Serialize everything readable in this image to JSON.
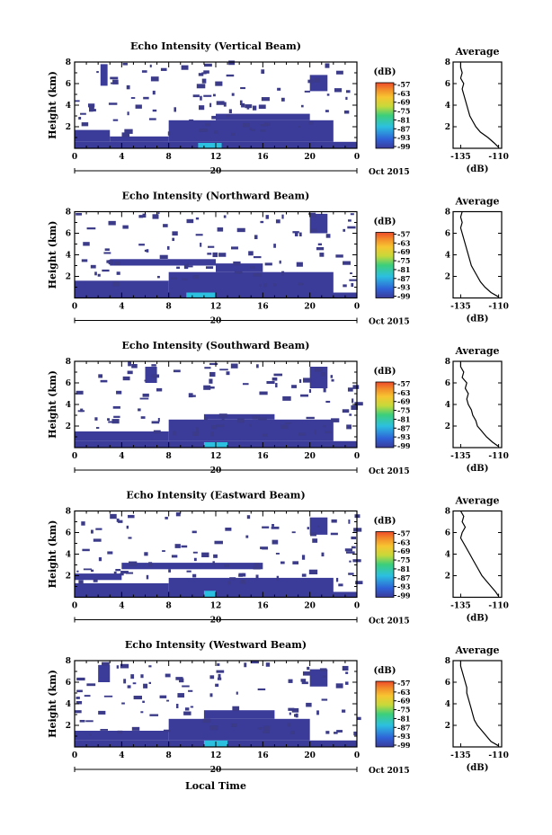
{
  "chart_data": [
    {
      "type": "heatmap",
      "title": "Echo Intensity (Vertical Beam)",
      "ylabel": "Height (km)",
      "xlim": [
        0,
        24
      ],
      "ylim": [
        0,
        8
      ],
      "x_ticks": [
        "0",
        "4",
        "8",
        "12",
        "16",
        "20",
        "0"
      ],
      "y_ticks": [
        "2",
        "4",
        "6",
        "8"
      ],
      "date_label": "20",
      "month_label": "Oct 2015",
      "colorbar": {
        "label": "(dB)",
        "ticks": [
          "-57",
          "-63",
          "-69",
          "-75",
          "-81",
          "-87",
          "-93",
          "-99"
        ]
      },
      "regions": [
        {
          "x0": 0,
          "x1": 24,
          "y0": 0,
          "y1": 0.6,
          "level": 0.06
        },
        {
          "x0": 0,
          "x1": 3,
          "y0": 0.6,
          "y1": 1.7,
          "level": 0.05
        },
        {
          "x0": 3,
          "x1": 8,
          "y0": 0.6,
          "y1": 1.1,
          "level": 0.05
        },
        {
          "x0": 8,
          "x1": 22,
          "y0": 0.6,
          "y1": 2.6,
          "level": 0.05
        },
        {
          "x0": 12,
          "x1": 20,
          "y0": 2.6,
          "y1": 3.2,
          "level": 0.04
        },
        {
          "x0": 10.5,
          "x1": 12.5,
          "y0": 0,
          "y1": 0.5,
          "level": 0.22
        },
        {
          "x0": 20,
          "x1": 21.5,
          "y0": 5.3,
          "y1": 6.8,
          "level": 0.04
        },
        {
          "x0": 2.2,
          "x1": 2.8,
          "y0": 5.8,
          "y1": 7.8,
          "level": 0.03
        }
      ],
      "average_profile": {
        "title": "Average",
        "xlabel": "(dB)",
        "x_ticks": [
          "-135",
          "-110"
        ],
        "xlim": [
          -140,
          -108
        ],
        "ylim": [
          0,
          8
        ],
        "y_ticks": [
          "2",
          "4",
          "6",
          "8"
        ],
        "x": [
          -110,
          -113,
          -117,
          -122,
          -125,
          -127,
          -129,
          -130,
          -131,
          -132,
          -133,
          -134,
          -133,
          -135,
          -134,
          -135,
          -135
        ],
        "y": [
          0.1,
          0.5,
          1.0,
          1.5,
          2.0,
          2.5,
          3.0,
          3.5,
          4.0,
          4.5,
          5.0,
          5.5,
          6.0,
          6.5,
          7.0,
          7.5,
          8.0
        ]
      }
    },
    {
      "type": "heatmap",
      "title": "Echo Intensity (Northward Beam)",
      "ylabel": "Height (km)",
      "xlim": [
        0,
        24
      ],
      "ylim": [
        0,
        8
      ],
      "x_ticks": [
        "0",
        "4",
        "8",
        "12",
        "16",
        "20",
        "0"
      ],
      "y_ticks": [
        "2",
        "4",
        "6",
        "8"
      ],
      "date_label": "20",
      "month_label": "Oct 2015",
      "colorbar": {
        "label": "(dB)",
        "ticks": [
          "-57",
          "-63",
          "-69",
          "-75",
          "-81",
          "-87",
          "-93",
          "-99"
        ]
      },
      "regions": [
        {
          "x0": 0,
          "x1": 24,
          "y0": 0,
          "y1": 0.5,
          "level": 0.06
        },
        {
          "x0": 0,
          "x1": 8,
          "y0": 0.5,
          "y1": 1.6,
          "level": 0.05
        },
        {
          "x0": 8,
          "x1": 22,
          "y0": 0.5,
          "y1": 2.4,
          "level": 0.05
        },
        {
          "x0": 12,
          "x1": 16,
          "y0": 2.4,
          "y1": 3.2,
          "level": 0.04
        },
        {
          "x0": 9.5,
          "x1": 12,
          "y0": 0,
          "y1": 0.5,
          "level": 0.22
        },
        {
          "x0": 20,
          "x1": 21.5,
          "y0": 6.0,
          "y1": 7.8,
          "level": 0.04
        },
        {
          "x0": 3,
          "x1": 12,
          "y0": 3.0,
          "y1": 3.6,
          "level": 0.03
        }
      ],
      "average_profile": {
        "title": "Average",
        "xlabel": "(dB)",
        "x_ticks": [
          "-135",
          "-110"
        ],
        "xlim": [
          -140,
          -108
        ],
        "ylim": [
          0,
          8
        ],
        "y_ticks": [
          "2",
          "4",
          "6",
          "8"
        ],
        "x": [
          -110,
          -115,
          -119,
          -122,
          -124,
          -126,
          -128,
          -129,
          -130,
          -131,
          -132,
          -133,
          -134,
          -135,
          -134,
          -135,
          -134
        ],
        "y": [
          0.1,
          0.5,
          1.0,
          1.5,
          2.0,
          2.5,
          3.0,
          3.5,
          4.0,
          4.5,
          5.0,
          5.5,
          6.0,
          6.5,
          7.0,
          7.5,
          8.0
        ]
      }
    },
    {
      "type": "heatmap",
      "title": "Echo Intensity (Southward Beam)",
      "ylabel": "Height (km)",
      "xlim": [
        0,
        24
      ],
      "ylim": [
        0,
        8
      ],
      "x_ticks": [
        "0",
        "4",
        "8",
        "12",
        "16",
        "20",
        "0"
      ],
      "y_ticks": [
        "2",
        "4",
        "6",
        "8"
      ],
      "date_label": "20",
      "month_label": "Oct 2015",
      "colorbar": {
        "label": "(dB)",
        "ticks": [
          "-57",
          "-63",
          "-69",
          "-75",
          "-81",
          "-87",
          "-93",
          "-99"
        ]
      },
      "regions": [
        {
          "x0": 0,
          "x1": 24,
          "y0": 0,
          "y1": 0.6,
          "level": 0.06
        },
        {
          "x0": 0,
          "x1": 8,
          "y0": 0.6,
          "y1": 1.5,
          "level": 0.05
        },
        {
          "x0": 8,
          "x1": 22,
          "y0": 0.6,
          "y1": 2.6,
          "level": 0.05
        },
        {
          "x0": 11,
          "x1": 17,
          "y0": 2.6,
          "y1": 3.1,
          "level": 0.04
        },
        {
          "x0": 11,
          "x1": 13,
          "y0": 0,
          "y1": 0.5,
          "level": 0.22
        },
        {
          "x0": 20,
          "x1": 21.5,
          "y0": 5.5,
          "y1": 7.5,
          "level": 0.04
        },
        {
          "x0": 6,
          "x1": 7,
          "y0": 6.0,
          "y1": 7.5,
          "level": 0.03
        }
      ],
      "average_profile": {
        "title": "Average",
        "xlabel": "(dB)",
        "x_ticks": [
          "-135",
          "-110"
        ],
        "xlim": [
          -140,
          -108
        ],
        "ylim": [
          0,
          8
        ],
        "y_ticks": [
          "2",
          "4",
          "6",
          "8"
        ],
        "x": [
          -110,
          -114,
          -118,
          -121,
          -124,
          -125,
          -127,
          -128,
          -130,
          -131,
          -130,
          -132,
          -131,
          -134,
          -133,
          -135,
          -135
        ],
        "y": [
          0.1,
          0.5,
          1.0,
          1.5,
          2.0,
          2.5,
          3.0,
          3.5,
          4.0,
          4.5,
          5.0,
          5.5,
          6.0,
          6.5,
          7.0,
          7.5,
          8.0
        ]
      }
    },
    {
      "type": "heatmap",
      "title": "Echo Intensity (Eastward Beam)",
      "ylabel": "Height (km)",
      "xlim": [
        0,
        24
      ],
      "ylim": [
        0,
        8
      ],
      "x_ticks": [
        "0",
        "4",
        "8",
        "12",
        "16",
        "20",
        "0"
      ],
      "y_ticks": [
        "2",
        "4",
        "6",
        "8"
      ],
      "date_label": "20",
      "month_label": "Oct 2015",
      "colorbar": {
        "label": "(dB)",
        "ticks": [
          "-57",
          "-63",
          "-69",
          "-75",
          "-81",
          "-87",
          "-93",
          "-99"
        ]
      },
      "regions": [
        {
          "x0": 0,
          "x1": 24,
          "y0": 0,
          "y1": 0.5,
          "level": 0.06
        },
        {
          "x0": 0,
          "x1": 8,
          "y0": 0.5,
          "y1": 1.3,
          "level": 0.05
        },
        {
          "x0": 8,
          "x1": 22,
          "y0": 0.5,
          "y1": 1.8,
          "level": 0.05
        },
        {
          "x0": 4,
          "x1": 16,
          "y0": 2.6,
          "y1": 3.2,
          "level": 0.04
        },
        {
          "x0": 11,
          "x1": 12,
          "y0": 0,
          "y1": 0.6,
          "level": 0.22
        },
        {
          "x0": 20,
          "x1": 21.5,
          "y0": 5.8,
          "y1": 7.4,
          "level": 0.04
        },
        {
          "x0": 0,
          "x1": 4,
          "y0": 1.6,
          "y1": 2.2,
          "level": 0.04
        }
      ],
      "average_profile": {
        "title": "Average",
        "xlabel": "(dB)",
        "x_ticks": [
          "-135",
          "-110"
        ],
        "xlim": [
          -140,
          -108
        ],
        "ylim": [
          0,
          8
        ],
        "y_ticks": [
          "2",
          "4",
          "6",
          "8"
        ],
        "x": [
          -110,
          -112,
          -115,
          -118,
          -121,
          -123,
          -125,
          -127,
          -129,
          -131,
          -133,
          -135,
          -134,
          -132,
          -134,
          -133,
          -135
        ],
        "y": [
          0.1,
          0.5,
          1.0,
          1.5,
          2.0,
          2.5,
          3.0,
          3.5,
          4.0,
          4.5,
          5.0,
          5.5,
          6.0,
          6.5,
          7.0,
          7.5,
          8.0
        ]
      }
    },
    {
      "type": "heatmap",
      "title": "Echo Intensity (Westward Beam)",
      "ylabel": "Height (km)",
      "xlim": [
        0,
        24
      ],
      "ylim": [
        0,
        8
      ],
      "x_ticks": [
        "0",
        "4",
        "8",
        "12",
        "16",
        "20",
        "0"
      ],
      "y_ticks": [
        "2",
        "4",
        "6",
        "8"
      ],
      "date_label": "20",
      "month_label": "Oct 2015",
      "xlabel": "Local Time",
      "colorbar": {
        "label": "(dB)",
        "ticks": [
          "-57",
          "-63",
          "-69",
          "-75",
          "-81",
          "-87",
          "-93",
          "-99"
        ]
      },
      "regions": [
        {
          "x0": 0,
          "x1": 24,
          "y0": 0,
          "y1": 0.6,
          "level": 0.06
        },
        {
          "x0": 0,
          "x1": 8,
          "y0": 0.6,
          "y1": 1.5,
          "level": 0.05
        },
        {
          "x0": 8,
          "x1": 20,
          "y0": 0.6,
          "y1": 2.6,
          "level": 0.05
        },
        {
          "x0": 11,
          "x1": 17,
          "y0": 2.6,
          "y1": 3.4,
          "level": 0.04
        },
        {
          "x0": 11,
          "x1": 13,
          "y0": 0,
          "y1": 0.6,
          "level": 0.22
        },
        {
          "x0": 20,
          "x1": 21.5,
          "y0": 5.6,
          "y1": 7.2,
          "level": 0.04
        },
        {
          "x0": 2,
          "x1": 3,
          "y0": 6.0,
          "y1": 7.6,
          "level": 0.03
        }
      ],
      "average_profile": {
        "title": "Average",
        "xlabel": "(dB)",
        "x_ticks": [
          "-135",
          "-110"
        ],
        "xlim": [
          -140,
          -108
        ],
        "ylim": [
          0,
          8
        ],
        "y_ticks": [
          "2",
          "4",
          "6",
          "8"
        ],
        "x": [
          -110,
          -115,
          -118,
          -121,
          -124,
          -126,
          -127,
          -128,
          -129,
          -130,
          -131,
          -131,
          -132,
          -133,
          -134,
          -135,
          -135
        ],
        "y": [
          0.1,
          0.5,
          1.0,
          1.5,
          2.0,
          2.5,
          3.0,
          3.5,
          4.0,
          4.5,
          5.0,
          5.5,
          6.0,
          6.5,
          7.0,
          7.5,
          8.0
        ]
      }
    }
  ],
  "colors": {
    "colormap": [
      "#3b3b9a",
      "#2f62d8",
      "#2cc0e0",
      "#3ccf7a",
      "#c7d93a",
      "#f7c531",
      "#f28a2a",
      "#ee4a2a"
    ],
    "cell": "#3b3b8a",
    "axis": "#000000"
  }
}
